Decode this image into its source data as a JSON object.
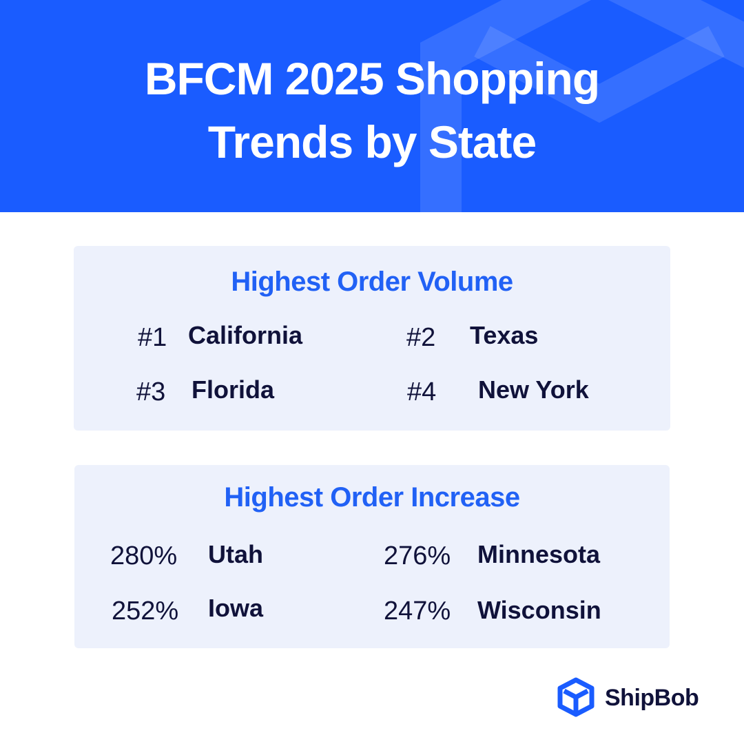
{
  "header": {
    "title": "BFCM 2025 Shopping Trends by State"
  },
  "volume": {
    "title": "Highest Order Volume",
    "items": [
      {
        "rank": "#1",
        "state": "California"
      },
      {
        "rank": "#2",
        "state": "Texas"
      },
      {
        "rank": "#3",
        "state": "Florida"
      },
      {
        "rank": "#4",
        "state": "New York"
      }
    ]
  },
  "increase": {
    "title": "Highest Order Increase",
    "items": [
      {
        "value": "280%",
        "state": "Utah"
      },
      {
        "value": "276%",
        "state": "Minnesota"
      },
      {
        "value": "252%",
        "state": "Iowa"
      },
      {
        "value": "247%",
        "state": "Wisconsin"
      }
    ]
  },
  "logo": {
    "text": "ShipBob"
  }
}
